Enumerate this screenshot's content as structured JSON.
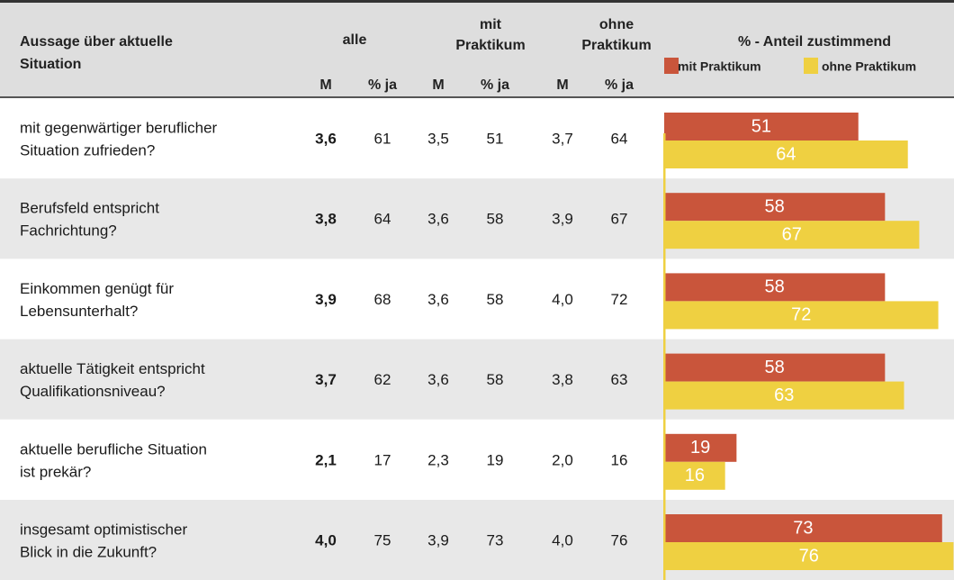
{
  "header": {
    "statement": [
      "Aussage über aktuelle",
      "Situation"
    ],
    "alle": "alle",
    "mit": [
      "mit",
      "Praktikum"
    ],
    "ohne": [
      "ohne",
      "Praktikum"
    ],
    "m": "M",
    "ja": "% ja",
    "chart_title": "% - Anteil zustimmend"
  },
  "legend": [
    {
      "name": "mit Praktikum",
      "color": "#c9553b"
    },
    {
      "name": "ohne Praktikum",
      "color": "#efd041"
    }
  ],
  "rows": [
    {
      "label": [
        "mit gegenwärtiger beruflicher",
        "Situation zufrieden?"
      ],
      "alle_m": "3,6",
      "alle_ja": 61,
      "mit_m": "3,5",
      "mit_ja": 51,
      "ohne_m": "3,7",
      "ohne_ja": 64
    },
    {
      "label": [
        "Berufsfeld entspricht",
        "Fachrichtung?"
      ],
      "alle_m": "3,8",
      "alle_ja": 64,
      "mit_m": "3,6",
      "mit_ja": 58,
      "ohne_m": "3,9",
      "ohne_ja": 67
    },
    {
      "label": [
        "Einkommen genügt für",
        "Lebensunterhalt?"
      ],
      "alle_m": "3,9",
      "alle_ja": 68,
      "mit_m": "3,6",
      "mit_ja": 58,
      "ohne_m": "4,0",
      "ohne_ja": 72
    },
    {
      "label": [
        "aktuelle Tätigkeit entspricht",
        "Qualifikationsniveau?"
      ],
      "alle_m": "3,7",
      "alle_ja": 62,
      "mit_m": "3,6",
      "mit_ja": 58,
      "ohne_m": "3,8",
      "ohne_ja": 63
    },
    {
      "label": [
        "aktuelle berufliche Situation",
        "ist prekär?"
      ],
      "alle_m": "2,1",
      "alle_ja": 17,
      "mit_m": "2,3",
      "mit_ja": 19,
      "ohne_m": "2,0",
      "ohne_ja": 16
    },
    {
      "label": [
        "insgesamt optimistischer",
        "Blick in die Zukunft?"
      ],
      "alle_m": "4,0",
      "alle_ja": 75,
      "mit_m": "3,9",
      "mit_ja": 73,
      "ohne_m": "4,0",
      "ohne_ja": 76
    }
  ]
}
